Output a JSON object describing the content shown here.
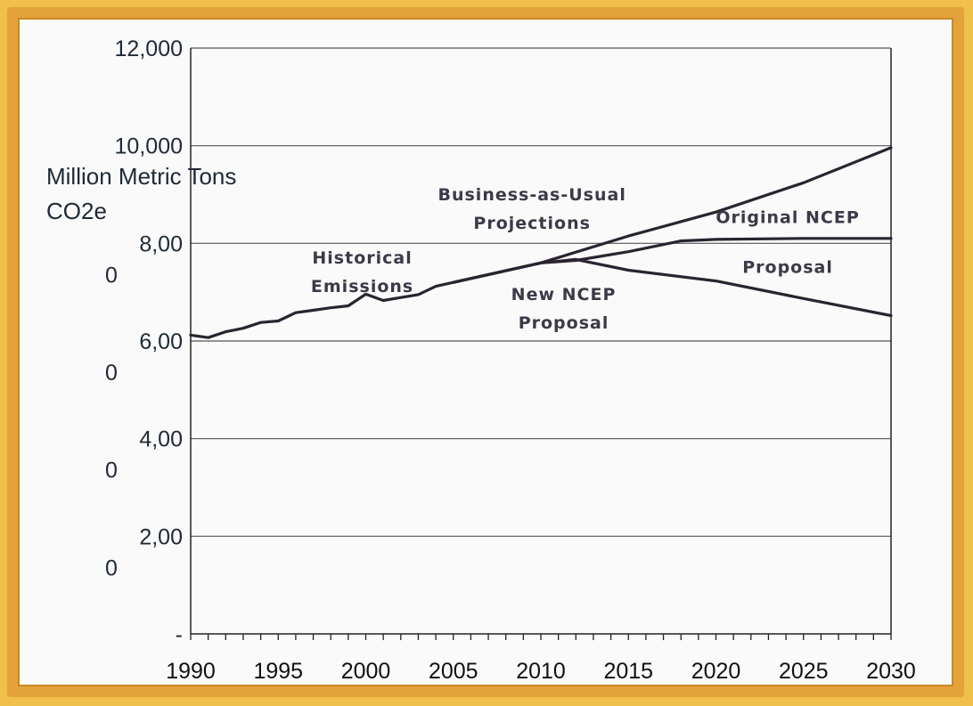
{
  "chart_data": {
    "type": "line",
    "ylabel_line1": "Million Metric Tons",
    "ylabel_line2": "CO2e",
    "ylim": [
      0,
      12000
    ],
    "xlim": [
      1990,
      2030
    ],
    "y_ticks": [
      {
        "value": 12000,
        "lines": [
          "12,000"
        ]
      },
      {
        "value": 10000,
        "lines": [
          "10,000"
        ]
      },
      {
        "value": 8000,
        "lines": [
          "8,00",
          "0"
        ]
      },
      {
        "value": 6000,
        "lines": [
          "6,00",
          "0"
        ]
      },
      {
        "value": 4000,
        "lines": [
          "4,00",
          "0"
        ]
      },
      {
        "value": 2000,
        "lines": [
          "2,00",
          "0"
        ]
      },
      {
        "value": 0,
        "lines": [
          "-"
        ]
      }
    ],
    "x_ticks": [
      1990,
      1995,
      2000,
      2005,
      2010,
      2015,
      2020,
      2025,
      2030
    ],
    "grid": true,
    "series": [
      {
        "key": "historical",
        "x": [
          1990,
          1991,
          1992,
          1993,
          1994,
          1995,
          1996,
          1997,
          1998,
          1999,
          2000,
          2001,
          2002,
          2003,
          2004,
          2005
        ],
        "y": [
          6120,
          6070,
          6190,
          6260,
          6380,
          6410,
          6580,
          6630,
          6680,
          6720,
          6960,
          6830,
          6890,
          6950,
          7120,
          7200
        ]
      },
      {
        "key": "bau",
        "x": [
          2005,
          2010,
          2015,
          2020,
          2025,
          2030
        ],
        "y": [
          7200,
          7600,
          8150,
          8640,
          9240,
          9960
        ]
      },
      {
        "key": "original_ncep",
        "x": [
          2005,
          2010,
          2012,
          2015,
          2018,
          2020,
          2025,
          2030
        ],
        "y": [
          7200,
          7600,
          7650,
          7830,
          8050,
          8080,
          8100,
          8100
        ]
      },
      {
        "key": "new_ncep",
        "x": [
          2005,
          2010,
          2012,
          2015,
          2020,
          2025,
          2030
        ],
        "y": [
          7200,
          7600,
          7670,
          7450,
          7230,
          6870,
          6520
        ]
      }
    ],
    "annotations": {
      "historical": [
        "Historical",
        "Emissions"
      ],
      "bau": [
        "Business-as-Usual",
        "Projections"
      ],
      "original_ncep": [
        "Original NCEP",
        "Proposal"
      ],
      "new_ncep": [
        "New NCEP",
        "Proposal"
      ]
    },
    "colors": {
      "line": "#2a2430",
      "grid": "#555555",
      "frame": "#e3a23a",
      "background": "#fafafa"
    }
  }
}
